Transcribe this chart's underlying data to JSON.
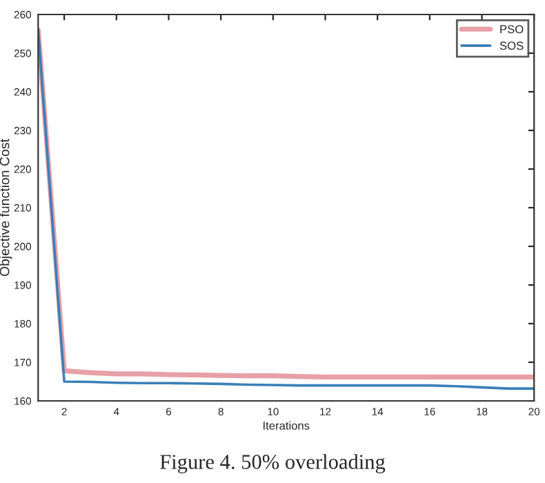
{
  "chart_data": {
    "type": "line",
    "xlabel": "Iterations",
    "ylabel": "Objective function Cost",
    "annotations": [
      "Figure 4. 50% overloading"
    ],
    "x": [
      1,
      2,
      3,
      4,
      5,
      6,
      7,
      8,
      9,
      10,
      11,
      12,
      13,
      14,
      15,
      16,
      17,
      18,
      19,
      20
    ],
    "series": [
      {
        "name": "PSO",
        "color": "#e8a0a8",
        "values": [
          256,
          167.8,
          167.3,
          167,
          167,
          166.8,
          166.7,
          166.6,
          166.5,
          166.5,
          166.3,
          166.2,
          166.2,
          166.2,
          166.2,
          166.2,
          166.2,
          166.2,
          166.2,
          166.2
        ]
      },
      {
        "name": "SOS",
        "color": "#3a7fb8",
        "values": [
          256,
          165,
          164.9,
          164.7,
          164.6,
          164.6,
          164.5,
          164.4,
          164.2,
          164.1,
          164,
          164,
          164,
          164,
          164,
          164,
          163.8,
          163.5,
          163.2,
          163.2
        ]
      }
    ],
    "xlim": [
      1,
      20
    ],
    "ylim": [
      160,
      260
    ],
    "xticks": [
      2,
      4,
      6,
      8,
      10,
      12,
      14,
      16,
      18,
      20
    ],
    "yticks": [
      160,
      170,
      180,
      190,
      200,
      210,
      220,
      230,
      240,
      250,
      260
    ],
    "legend": "top right",
    "grid": false,
    "line_style": "solid",
    "marker": "none"
  }
}
